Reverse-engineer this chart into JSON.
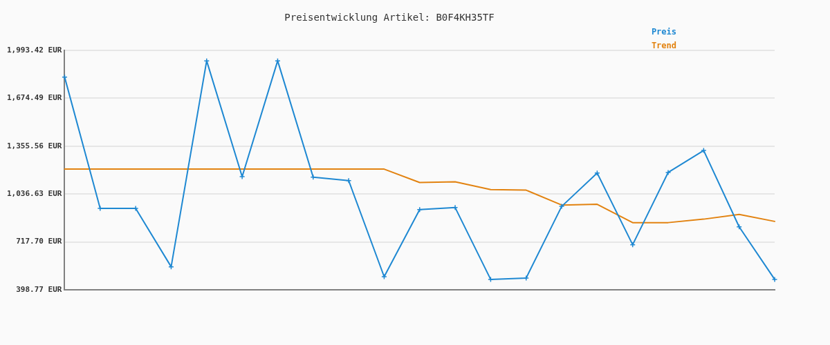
{
  "chart_data": {
    "type": "line",
    "title": "Preisentwicklung Artikel: B0F4KH35TF",
    "categories": [
      null,
      null,
      null,
      null,
      null,
      null,
      null,
      null,
      null,
      null,
      null,
      null,
      null,
      null,
      null,
      null,
      null,
      null,
      null,
      null,
      null
    ],
    "series": [
      {
        "name": "Preis",
        "color": "#1e88d2",
        "marker": "cross",
        "values": [
          1814,
          941,
          941,
          552,
          1923,
          1152,
          1923,
          1149,
          1126,
          486,
          933,
          946,
          468,
          477,
          954,
          1176,
          699,
          1180,
          1326,
          818,
          468
        ]
      },
      {
        "name": "Trend",
        "color": "#e2820f",
        "marker": "none",
        "values": [
          1202,
          1202,
          1202,
          1202,
          1202,
          1202,
          1202,
          1202,
          1202,
          1202,
          1113,
          1118,
          1066,
          1062,
          963,
          968,
          846,
          846,
          869,
          901,
          854
        ]
      }
    ],
    "ylim": [
      398.77,
      1993.42
    ],
    "yticks": [
      {
        "value": 398.77,
        "label": "398.77 EUR"
      },
      {
        "value": 717.7,
        "label": "717.70 EUR"
      },
      {
        "value": 1036.63,
        "label": "1,036.63 EUR"
      },
      {
        "value": 1355.56,
        "label": "1,355.56 EUR"
      },
      {
        "value": 1674.49,
        "label": "1,674.49 EUR"
      },
      {
        "value": 1993.42,
        "label": "1,993.42 EUR"
      }
    ],
    "grid": "y",
    "legend": "top right",
    "tick_labels": "y"
  }
}
